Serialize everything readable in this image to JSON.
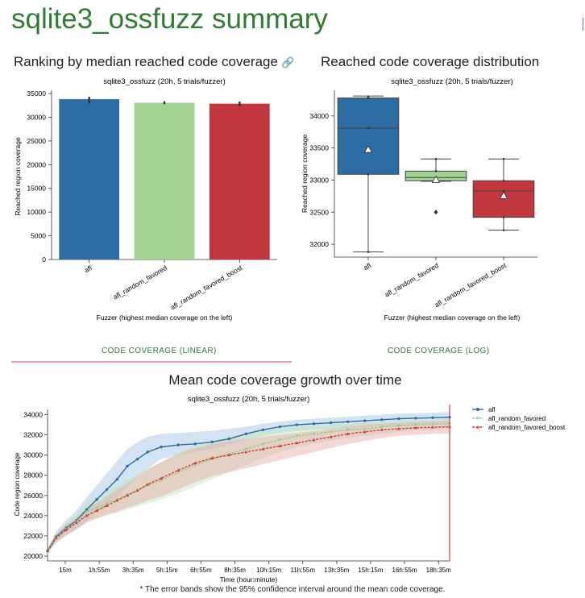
{
  "page": {
    "title": "sqlite3_ossfuzz summary",
    "footnote": "* The error bands show the 95% confidence interval around the mean code coverage."
  },
  "sections": {
    "ranking_title": "Ranking by median reached code coverage",
    "distribution_title": "Reached code coverage distribution",
    "growth_title": "Mean code coverage growth over time"
  },
  "icons": {
    "link": "link-icon"
  },
  "tabs": {
    "linear": "CODE COVERAGE (LINEAR)",
    "log": "CODE COVERAGE (LOG)"
  },
  "colors": {
    "afl": "#2e6da4",
    "afl_random_favored": "#a1d494",
    "afl_random_favored_boost": "#c0373d",
    "title_green": "#2e7d32"
  },
  "chart_data": [
    {
      "type": "bar",
      "title": "sqlite3_ossfuzz (20h, 5 trials/fuzzer)",
      "xlabel": "Fuzzer (highest median coverage on the left)",
      "ylabel": "Reached region coverage",
      "categories": [
        "afl",
        "afl_random_favored",
        "afl_random_favored_boost"
      ],
      "values": [
        33800,
        33050,
        32850
      ],
      "error_low": [
        32900,
        32750,
        32350
      ],
      "error_high": [
        34300,
        33350,
        33300
      ],
      "ylim": [
        0,
        35000
      ],
      "yticks": [
        0,
        5000,
        10000,
        15000,
        20000,
        25000,
        30000,
        35000
      ]
    },
    {
      "type": "box",
      "title": "sqlite3_ossfuzz (20h, 5 trials/fuzzer)",
      "xlabel": "Fuzzer (highest median coverage on the left)",
      "ylabel": "Reached region coverage",
      "categories": [
        "afl",
        "afl_random_favored",
        "afl_random_favored_boost"
      ],
      "boxes": [
        {
          "min": 31880,
          "q1": 33090,
          "median": 33810,
          "q3": 34280,
          "max": 34310,
          "mean": 33470,
          "points": [
            34300,
            34280,
            33810,
            33090,
            31880
          ],
          "outliers": []
        },
        {
          "min": 32980,
          "q1": 32990,
          "median": 33040,
          "q3": 33140,
          "max": 33330,
          "mean": 33000,
          "points": [
            33330,
            33140,
            33040,
            32990
          ],
          "outliers": [
            32500
          ]
        },
        {
          "min": 32220,
          "q1": 32420,
          "median": 32830,
          "q3": 32990,
          "max": 33330,
          "mean": 32750,
          "points": [
            33330,
            32990,
            32830,
            32420,
            32220
          ],
          "outliers": []
        }
      ],
      "ylim": [
        31850,
        34350
      ],
      "yticks": [
        32000,
        32500,
        33000,
        33500,
        34000
      ]
    },
    {
      "type": "line",
      "title": "sqlite3_ossfuzz (20h, 5 trials/fuzzer)",
      "xlabel": "Time (hour:minute)",
      "ylabel": "Code region coverage",
      "xlim": [
        15,
        1200
      ],
      "ylim": [
        20000,
        34200
      ],
      "xticks": [
        15,
        115,
        215,
        315,
        415,
        515,
        615,
        715,
        815,
        915,
        1015,
        1115
      ],
      "xtick_labels": [
        "15m",
        "1h:55m",
        "3h:35m",
        "5h:15m",
        "6h:55m",
        "8h:35m",
        "10h:15m",
        "11h:55m",
        "13h:35m",
        "15h:15m",
        "16h:55m",
        "18h:35m"
      ],
      "yticks": [
        20000,
        22000,
        24000,
        26000,
        28000,
        30000,
        32000,
        34000
      ],
      "marker_line_x": 1200,
      "series": [
        {
          "name": "afl",
          "x": [
            15,
            40,
            70,
            100,
            130,
            160,
            190,
            220,
            250,
            280,
            310,
            350,
            400,
            450,
            500,
            550,
            600,
            650,
            700,
            750,
            800,
            850,
            900,
            950,
            1000,
            1050,
            1100,
            1150,
            1200
          ],
          "y": [
            20500,
            21900,
            22800,
            23500,
            24600,
            25600,
            26600,
            27600,
            28900,
            29600,
            30300,
            30800,
            31000,
            31100,
            31300,
            31600,
            32100,
            32500,
            32800,
            33000,
            33100,
            33200,
            33300,
            33400,
            33500,
            33600,
            33650,
            33700,
            33750
          ],
          "lower": [
            20300,
            21300,
            22000,
            22600,
            23400,
            24300,
            25000,
            25800,
            26800,
            27800,
            28700,
            29600,
            30000,
            30300,
            30600,
            31000,
            31500,
            31900,
            32200,
            32400,
            32500,
            32600,
            32700,
            32800,
            32900,
            33000,
            33050,
            33100,
            33150
          ],
          "upper": [
            20700,
            22400,
            23600,
            24500,
            25800,
            27000,
            28200,
            29400,
            30600,
            31300,
            31800,
            32100,
            32200,
            32300,
            32400,
            32600,
            32800,
            33100,
            33300,
            33500,
            33600,
            33700,
            33800,
            33900,
            34000,
            34100,
            34150,
            34200,
            34250
          ]
        },
        {
          "name": "afl_random_favored",
          "x": [
            15,
            40,
            70,
            100,
            130,
            160,
            190,
            220,
            250,
            280,
            310,
            350,
            400,
            450,
            500,
            550,
            600,
            650,
            700,
            750,
            800,
            850,
            900,
            950,
            1000,
            1050,
            1100,
            1150,
            1200
          ],
          "y": [
            20400,
            21800,
            22700,
            23400,
            24400,
            24800,
            25200,
            25600,
            26100,
            26500,
            27000,
            27500,
            28300,
            29000,
            29600,
            30100,
            30600,
            31100,
            31500,
            31900,
            32100,
            32300,
            32500,
            32600,
            32800,
            32900,
            33000,
            33050,
            33100
          ],
          "lower": [
            20200,
            21300,
            22100,
            22700,
            23500,
            23800,
            24000,
            24300,
            24600,
            24900,
            25200,
            25600,
            26200,
            26900,
            27600,
            28300,
            29000,
            29700,
            30300,
            30800,
            31100,
            31400,
            31700,
            31900,
            32100,
            32300,
            32400,
            32500,
            32600
          ],
          "upper": [
            20600,
            22300,
            23300,
            24100,
            25300,
            25800,
            26400,
            26900,
            27600,
            28100,
            28700,
            29300,
            30200,
            30900,
            31400,
            31800,
            32100,
            32400,
            32600,
            32800,
            32900,
            33000,
            33100,
            33200,
            33300,
            33400,
            33450,
            33500,
            33550
          ]
        },
        {
          "name": "afl_random_favored_boost",
          "x": [
            15,
            40,
            70,
            100,
            130,
            160,
            190,
            220,
            250,
            280,
            310,
            350,
            400,
            450,
            500,
            550,
            600,
            650,
            700,
            750,
            800,
            850,
            900,
            950,
            1000,
            1050,
            1100,
            1150,
            1200
          ],
          "y": [
            20500,
            21800,
            22600,
            23300,
            24000,
            24500,
            25000,
            25500,
            26000,
            26500,
            27100,
            27700,
            28500,
            29200,
            29700,
            30000,
            30300,
            30600,
            30900,
            31200,
            31500,
            31800,
            32100,
            32300,
            32500,
            32600,
            32700,
            32750,
            32800
          ],
          "lower": [
            20300,
            21400,
            22100,
            22700,
            23300,
            23700,
            24100,
            24400,
            24800,
            25100,
            25500,
            25900,
            26600,
            27300,
            27900,
            28300,
            28700,
            29100,
            29500,
            29900,
            30300,
            30700,
            31100,
            31400,
            31700,
            31900,
            32000,
            32100,
            32150
          ],
          "upper": [
            20700,
            22200,
            23100,
            23900,
            24700,
            25300,
            25900,
            26600,
            27200,
            27900,
            28600,
            29300,
            30100,
            30700,
            31100,
            31400,
            31600,
            31800,
            32000,
            32200,
            32400,
            32600,
            32800,
            33000,
            33100,
            33200,
            33300,
            33350,
            33400
          ]
        }
      ]
    }
  ]
}
